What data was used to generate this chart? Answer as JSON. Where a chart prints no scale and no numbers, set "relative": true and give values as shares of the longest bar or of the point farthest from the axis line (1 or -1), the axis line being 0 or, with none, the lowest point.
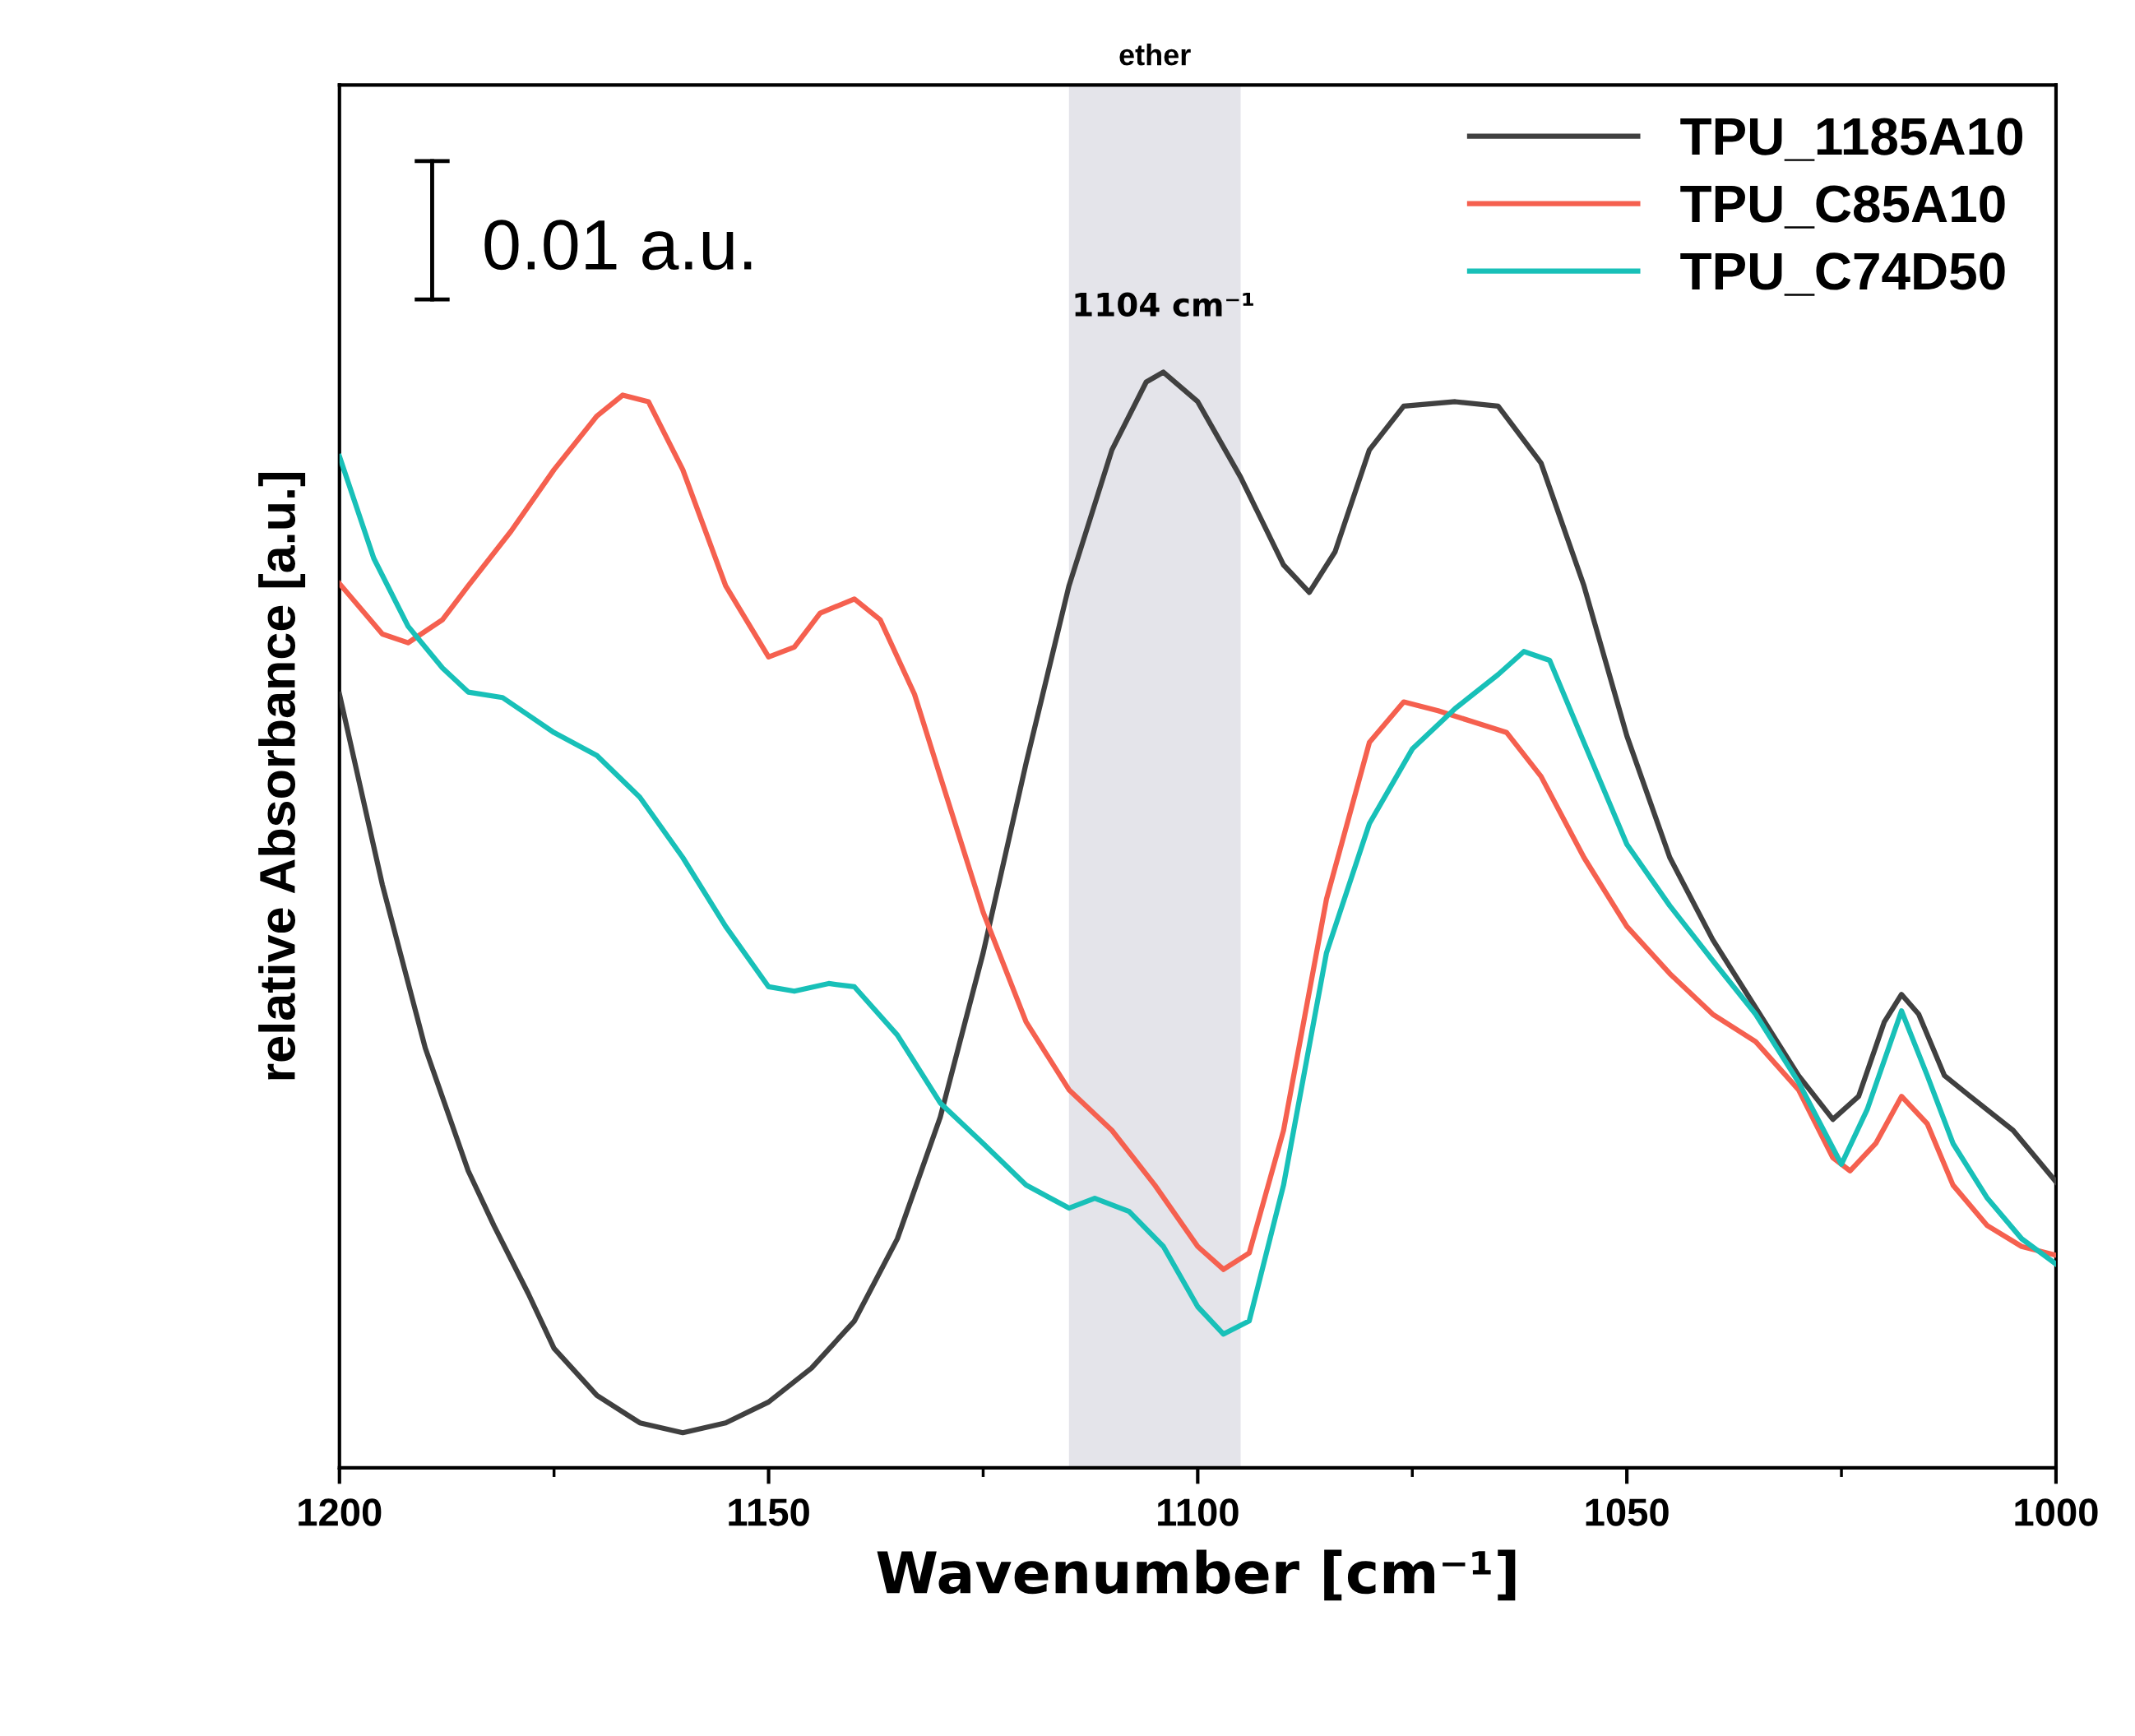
{
  "chart_data": {
    "type": "line",
    "relative": true,
    "xlabel": "Wavenumber [cm⁻¹]",
    "ylabel": "relative Absorbance [a.u.]",
    "xlim": [
      1200,
      1000
    ],
    "xticks": [
      1200,
      1150,
      1100,
      1050,
      1000
    ],
    "legend": "top right",
    "grid": false,
    "line_style": "solid",
    "marker": "none",
    "bands": [
      {
        "axis": "x",
        "from": 1115,
        "to": 1095,
        "label": "ether",
        "color": "#e4e4ea"
      }
    ],
    "annotations": [
      {
        "text": "1104 cm⁻¹",
        "x": 1104,
        "y": 1.0
      },
      "0.01 a.u."
    ],
    "series": [
      {
        "name": "TPU_1185A10",
        "color": "#404040",
        "x": [
          1200,
          1195,
          1190,
          1185,
          1182,
          1178,
          1175,
          1170,
          1165,
          1160,
          1155,
          1150,
          1145,
          1140,
          1135,
          1130,
          1125,
          1120,
          1115,
          1110,
          1106,
          1104,
          1100,
          1095,
          1090,
          1087,
          1084,
          1080,
          1076,
          1070,
          1065,
          1060,
          1055,
          1050,
          1045,
          1040,
          1035,
          1030,
          1026,
          1023,
          1020,
          1018,
          1016,
          1013,
          1010,
          1005,
          1000
        ],
        "values": [
          0.706,
          0.532,
          0.383,
          0.271,
          0.221,
          0.159,
          0.109,
          0.066,
          0.041,
          0.032,
          0.041,
          0.06,
          0.091,
          0.134,
          0.209,
          0.32,
          0.47,
          0.643,
          0.805,
          0.929,
          0.991,
          1.0,
          0.973,
          0.904,
          0.824,
          0.799,
          0.836,
          0.929,
          0.969,
          0.973,
          0.969,
          0.917,
          0.805,
          0.668,
          0.557,
          0.482,
          0.42,
          0.358,
          0.318,
          0.339,
          0.407,
          0.432,
          0.414,
          0.358,
          0.339,
          0.308,
          0.261
        ]
      },
      {
        "name": "TPU_C85A10",
        "color": "#f5604f",
        "x": [
          1200,
          1195,
          1192,
          1188,
          1185,
          1180,
          1175,
          1170,
          1167,
          1164,
          1160,
          1155,
          1150,
          1147,
          1144,
          1140,
          1137,
          1133,
          1130,
          1125,
          1120,
          1115,
          1110,
          1105,
          1100,
          1097,
          1094,
          1090,
          1085,
          1080,
          1076,
          1072,
          1068,
          1064,
          1060,
          1055,
          1050,
          1045,
          1040,
          1035,
          1030,
          1026,
          1024,
          1021,
          1018,
          1015,
          1012,
          1008,
          1004,
          1000
        ],
        "values": [
          0.807,
          0.761,
          0.753,
          0.774,
          0.805,
          0.855,
          0.911,
          0.96,
          0.979,
          0.973,
          0.911,
          0.805,
          0.74,
          0.749,
          0.78,
          0.793,
          0.774,
          0.706,
          0.631,
          0.507,
          0.407,
          0.345,
          0.308,
          0.258,
          0.202,
          0.181,
          0.196,
          0.308,
          0.519,
          0.662,
          0.699,
          0.691,
          0.681,
          0.671,
          0.631,
          0.557,
          0.494,
          0.451,
          0.414,
          0.389,
          0.345,
          0.283,
          0.271,
          0.296,
          0.339,
          0.314,
          0.258,
          0.221,
          0.202,
          0.194
        ]
      },
      {
        "name": "TPU_C74D50",
        "color": "#18c0b8",
        "x": [
          1200,
          1196,
          1192,
          1188,
          1185,
          1181,
          1178,
          1175,
          1170,
          1165,
          1160,
          1155,
          1150,
          1147,
          1143,
          1140,
          1135,
          1130,
          1125,
          1120,
          1115,
          1112,
          1108,
          1104,
          1100,
          1097,
          1094,
          1090,
          1085,
          1080,
          1075,
          1070,
          1065,
          1062,
          1059,
          1055,
          1050,
          1045,
          1040,
          1035,
          1030,
          1025,
          1022,
          1018,
          1015,
          1012,
          1008,
          1004,
          1000
        ],
        "values": [
          0.923,
          0.83,
          0.768,
          0.73,
          0.708,
          0.703,
          0.687,
          0.671,
          0.65,
          0.612,
          0.557,
          0.494,
          0.439,
          0.435,
          0.442,
          0.439,
          0.395,
          0.333,
          0.296,
          0.258,
          0.237,
          0.246,
          0.234,
          0.202,
          0.147,
          0.122,
          0.134,
          0.258,
          0.47,
          0.588,
          0.656,
          0.693,
          0.724,
          0.745,
          0.737,
          0.662,
          0.569,
          0.513,
          0.463,
          0.414,
          0.352,
          0.277,
          0.327,
          0.417,
          0.358,
          0.296,
          0.246,
          0.209,
          0.186
        ]
      }
    ]
  }
}
